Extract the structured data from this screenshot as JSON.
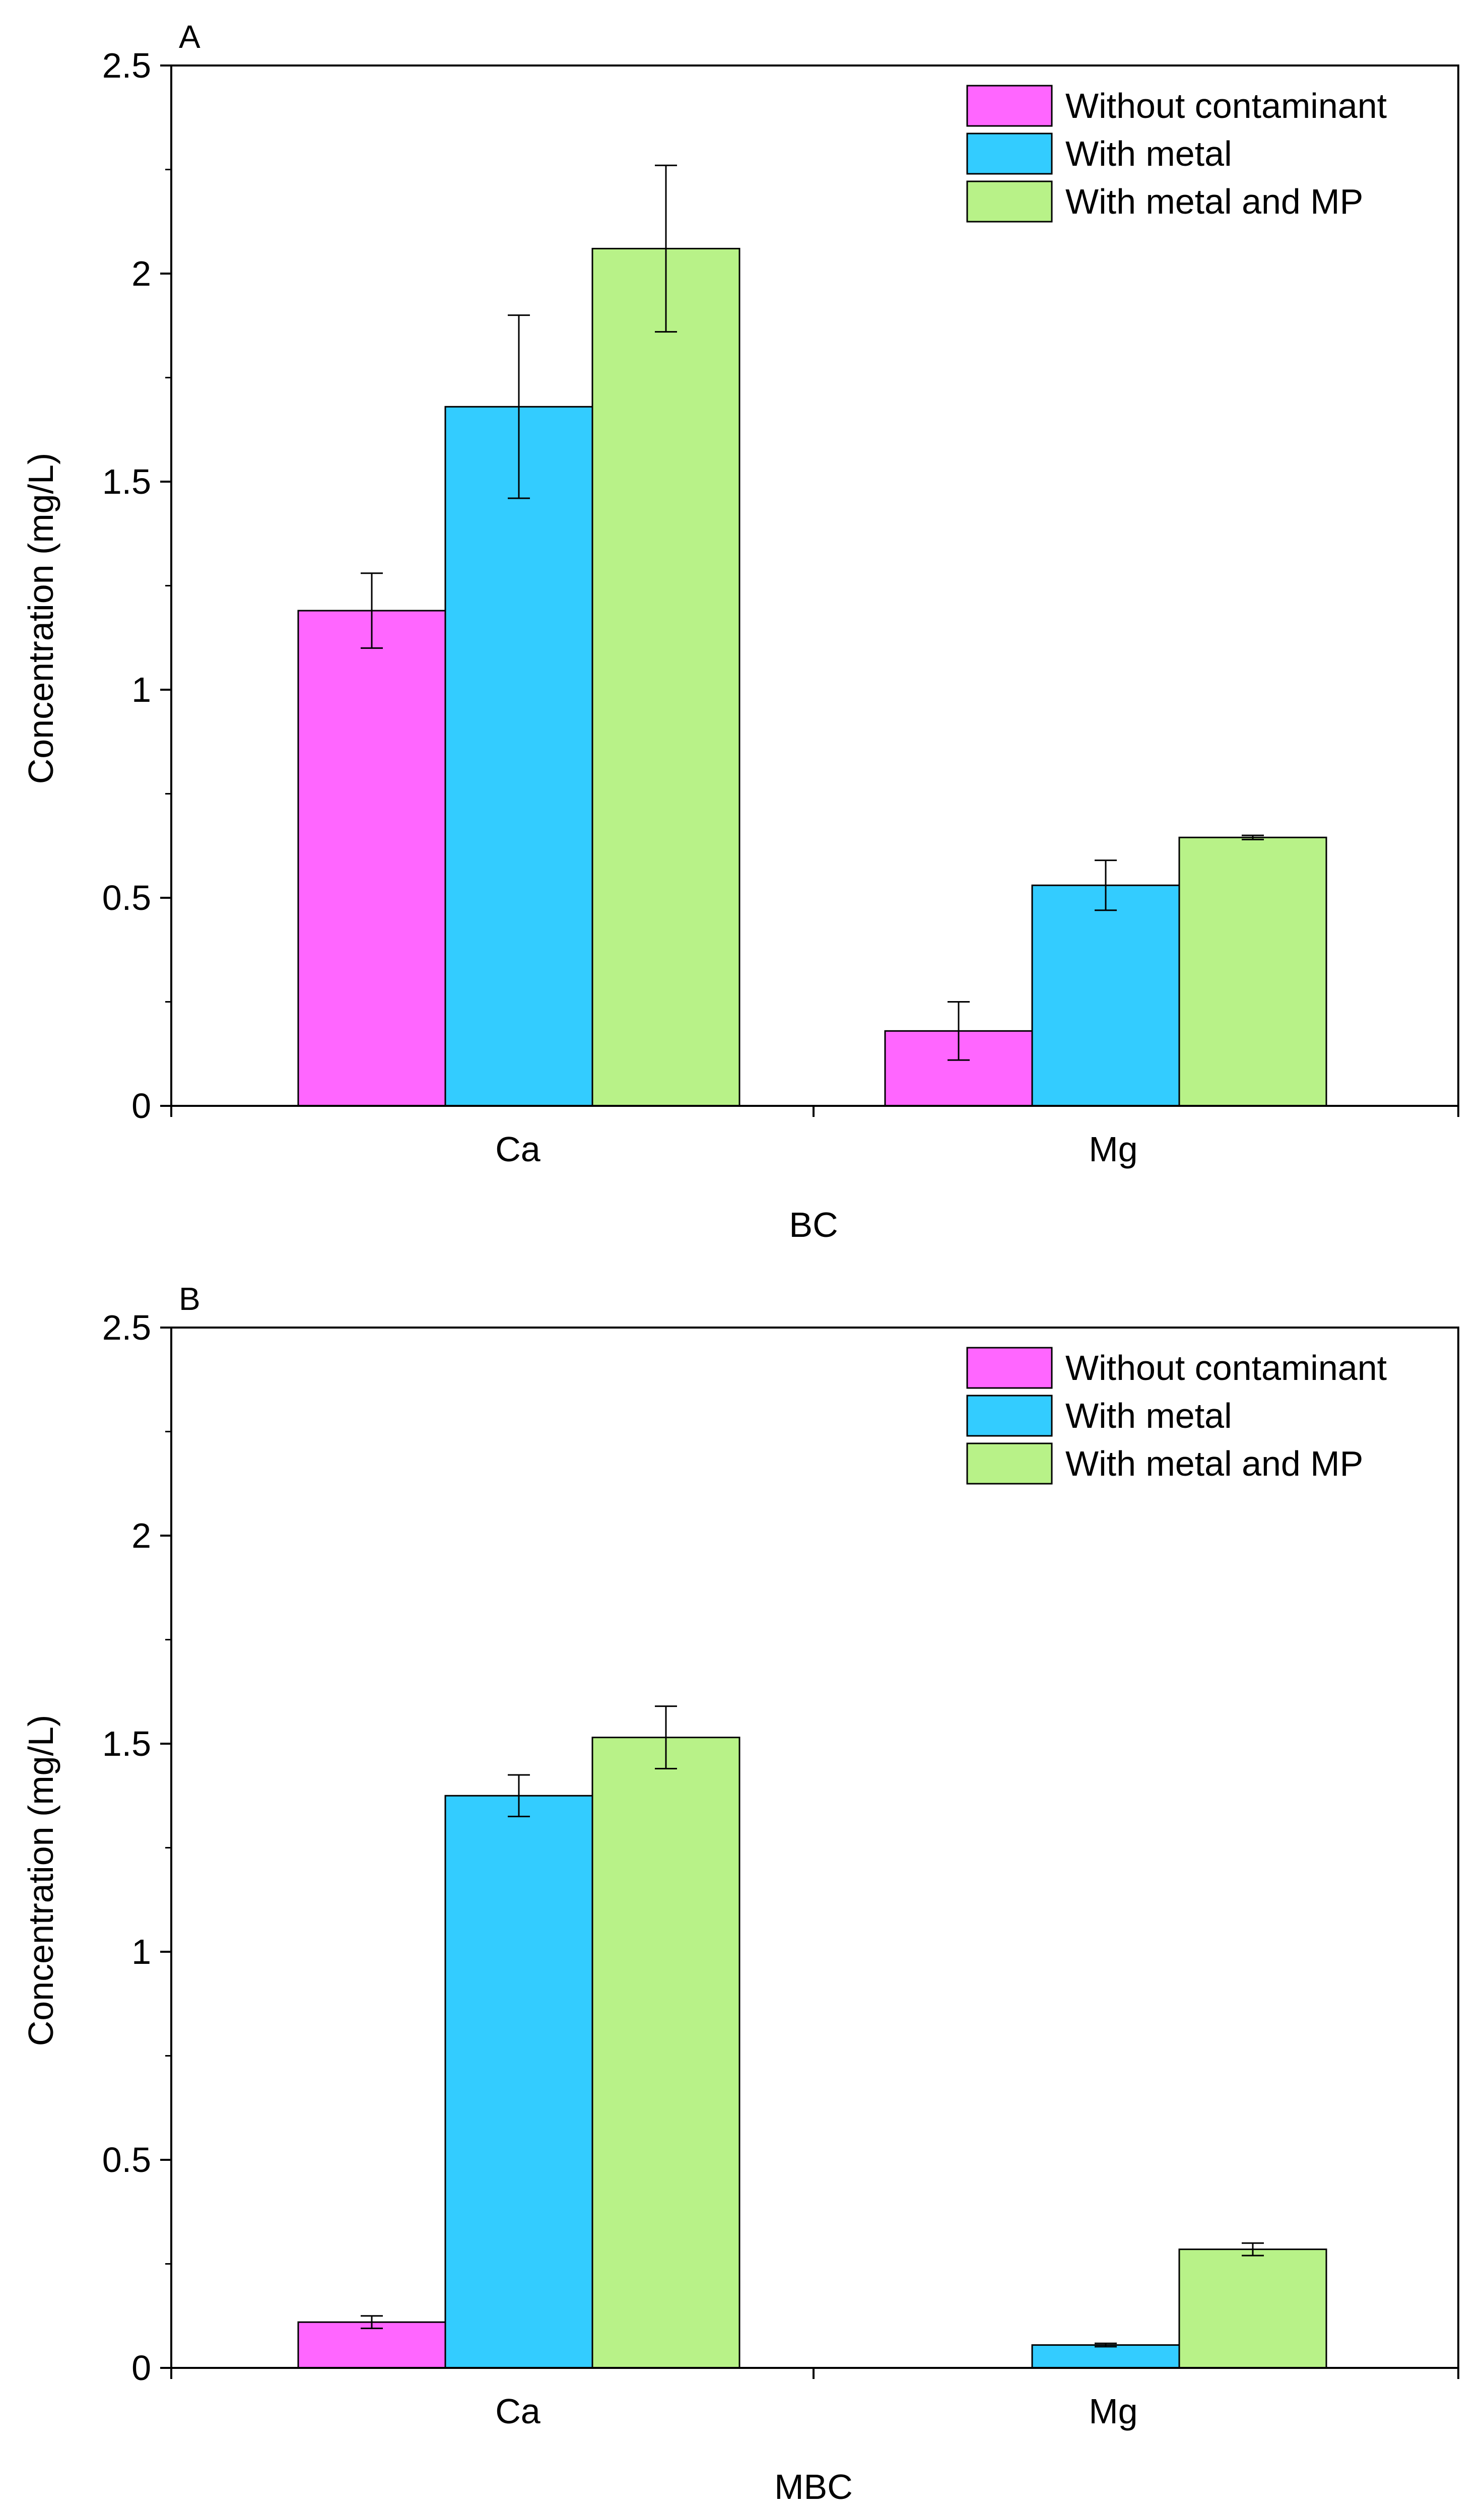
{
  "colors": {
    "without_contaminant": "#ff66ff",
    "with_metal": "#33ccff",
    "with_metal_and_mp": "#b8f288",
    "axis": "#000000"
  },
  "chart_data": [
    {
      "type": "bar",
      "panel": "A",
      "title": "",
      "xlabel": "BC",
      "ylabel": "Concentration (mg/L)",
      "ylim": [
        0,
        2.5
      ],
      "yticks": [
        "0",
        "0.5",
        "1",
        "1.5",
        "2",
        "2.5"
      ],
      "categories": [
        "Ca",
        "Mg"
      ],
      "legend_position": "top-right",
      "grid": false,
      "series": [
        {
          "name": "Without contaminant",
          "values": [
            1.19,
            0.18
          ],
          "errors": [
            0.09,
            0.07
          ]
        },
        {
          "name": "With metal",
          "values": [
            1.68,
            0.53
          ],
          "errors": [
            0.22,
            0.06
          ]
        },
        {
          "name": "With metal and MP",
          "values": [
            2.06,
            0.645
          ],
          "errors": [
            0.2,
            0.005
          ]
        }
      ]
    },
    {
      "type": "bar",
      "panel": "B",
      "title": "",
      "xlabel": "MBC",
      "ylabel": "Concentration (mg/L)",
      "ylim": [
        0,
        2.5
      ],
      "yticks": [
        "0",
        "0.5",
        "1",
        "1.5",
        "2",
        "2.5"
      ],
      "categories": [
        "Ca",
        "Mg"
      ],
      "legend_position": "top-right",
      "grid": false,
      "series": [
        {
          "name": "Without contaminant",
          "values": [
            0.11,
            0
          ],
          "errors": [
            0.015,
            0
          ]
        },
        {
          "name": "With metal",
          "values": [
            1.375,
            0.055
          ],
          "errors": [
            0.05,
            0.004
          ]
        },
        {
          "name": "With metal and MP",
          "values": [
            1.515,
            0.285
          ],
          "errors": [
            0.075,
            0.015
          ]
        }
      ]
    }
  ]
}
